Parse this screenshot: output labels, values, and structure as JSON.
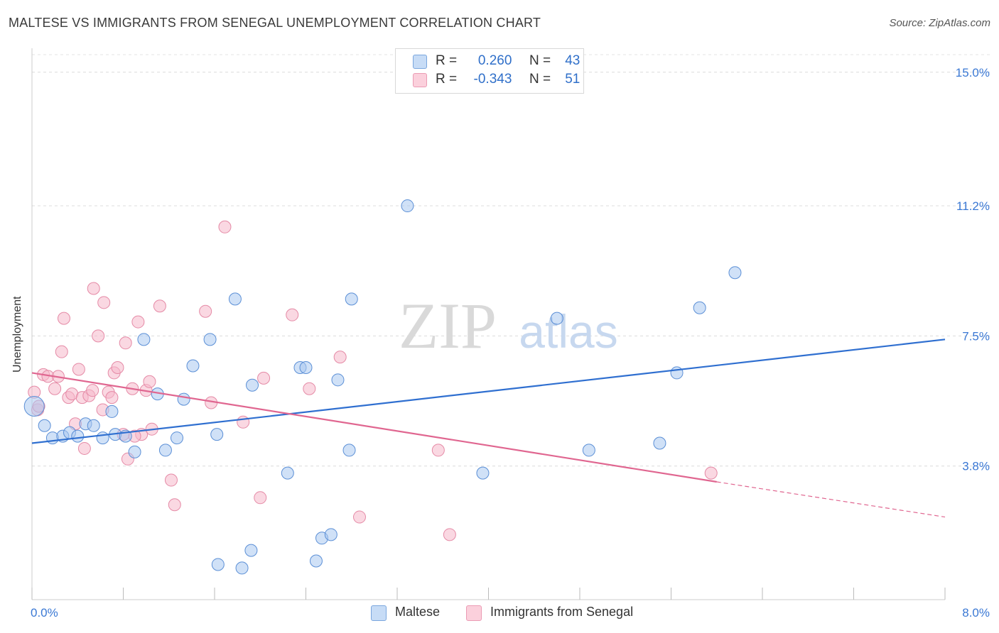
{
  "title": "MALTESE VS IMMIGRANTS FROM SENEGAL UNEMPLOYMENT CORRELATION CHART",
  "source": "Source: ZipAtlas.com",
  "watermark": {
    "part1": "ZIP",
    "part2": "atlas"
  },
  "legend": {
    "rows": [
      {
        "r_label": "R =",
        "r_value": "0.260",
        "n_label": "N =",
        "n_value": "43",
        "color": "#a9c8f0"
      },
      {
        "r_label": "R =",
        "r_value": "-0.343",
        "n_label": "N =",
        "n_value": "51",
        "color": "#f6b8ca"
      }
    ]
  },
  "bottom_legend": {
    "series1": "Maltese",
    "series2": "Immigrants from Senegal"
  },
  "colors": {
    "maltese_fill": "#a9c8f0",
    "maltese_stroke": "#5b8fd6",
    "maltese_line": "#2f6fd0",
    "senegal_fill": "#f6b8ca",
    "senegal_stroke": "#e58aa6",
    "senegal_line": "#e06690",
    "axis_text": "#3a78d4"
  },
  "chart_data": {
    "type": "scatter",
    "title": "MALTESE VS IMMIGRANTS FROM SENEGAL UNEMPLOYMENT CORRELATION CHART",
    "xlabel": "",
    "ylabel": "Unemployment",
    "xlim": [
      0,
      8
    ],
    "ylim": [
      0,
      15.5
    ],
    "x_tick_labels": [
      "0.0%",
      "8.0%"
    ],
    "y_ticks": [
      3.8,
      7.5,
      11.2,
      15.0
    ],
    "y_tick_labels": [
      "3.8%",
      "7.5%",
      "11.2%",
      "15.0%"
    ],
    "grid": "horizontal dashed",
    "legend_position": "top-center",
    "series": [
      {
        "name": "Maltese",
        "trend": {
          "x0": 0,
          "y0": 4.45,
          "x1": 8,
          "y1": 7.4
        },
        "points": [
          [
            0.02,
            5.5
          ],
          [
            0.11,
            4.95
          ],
          [
            0.18,
            4.6
          ],
          [
            0.27,
            4.65
          ],
          [
            0.33,
            4.75
          ],
          [
            0.4,
            4.65
          ],
          [
            0.47,
            5.0
          ],
          [
            0.54,
            4.95
          ],
          [
            0.62,
            4.6
          ],
          [
            0.7,
            5.35
          ],
          [
            0.73,
            4.7
          ],
          [
            0.82,
            4.65
          ],
          [
            0.9,
            4.2
          ],
          [
            0.98,
            7.4
          ],
          [
            1.1,
            5.85
          ],
          [
            1.17,
            4.25
          ],
          [
            1.27,
            4.6
          ],
          [
            1.33,
            5.7
          ],
          [
            1.41,
            6.65
          ],
          [
            1.56,
            7.4
          ],
          [
            1.62,
            4.7
          ],
          [
            1.63,
            1.0
          ],
          [
            1.78,
            8.55
          ],
          [
            1.84,
            0.9
          ],
          [
            1.92,
            1.4
          ],
          [
            1.93,
            6.1
          ],
          [
            2.24,
            3.6
          ],
          [
            2.35,
            6.6
          ],
          [
            2.4,
            6.6
          ],
          [
            2.49,
            1.1
          ],
          [
            2.54,
            1.75
          ],
          [
            2.62,
            1.85
          ],
          [
            2.68,
            6.25
          ],
          [
            2.78,
            4.25
          ],
          [
            2.8,
            8.55
          ],
          [
            3.29,
            11.2
          ],
          [
            3.95,
            3.6
          ],
          [
            4.6,
            8.0
          ],
          [
            4.88,
            4.25
          ],
          [
            5.5,
            4.45
          ],
          [
            5.65,
            6.45
          ],
          [
            5.85,
            8.3
          ],
          [
            6.16,
            9.3
          ]
        ]
      },
      {
        "name": "Immigrants from Senegal",
        "trend": {
          "x0": 0,
          "y0": 6.45,
          "x1": 6.0,
          "y1": 3.35,
          "dash_to": {
            "x": 8,
            "y": 2.35
          }
        },
        "points": [
          [
            0.02,
            5.9
          ],
          [
            0.05,
            5.4
          ],
          [
            0.1,
            6.4
          ],
          [
            0.14,
            6.35
          ],
          [
            0.2,
            6.0
          ],
          [
            0.23,
            6.35
          ],
          [
            0.26,
            7.05
          ],
          [
            0.28,
            8.0
          ],
          [
            0.32,
            5.75
          ],
          [
            0.35,
            5.85
          ],
          [
            0.38,
            5.0
          ],
          [
            0.41,
            6.55
          ],
          [
            0.44,
            5.75
          ],
          [
            0.46,
            4.3
          ],
          [
            0.5,
            5.8
          ],
          [
            0.53,
            5.95
          ],
          [
            0.54,
            8.85
          ],
          [
            0.58,
            7.5
          ],
          [
            0.62,
            5.4
          ],
          [
            0.63,
            8.45
          ],
          [
            0.67,
            5.9
          ],
          [
            0.7,
            5.75
          ],
          [
            0.72,
            6.45
          ],
          [
            0.75,
            6.6
          ],
          [
            0.8,
            4.7
          ],
          [
            0.82,
            7.3
          ],
          [
            0.84,
            4.0
          ],
          [
            0.88,
            6.0
          ],
          [
            0.93,
            7.9
          ],
          [
            0.96,
            4.7
          ],
          [
            1.0,
            5.95
          ],
          [
            1.03,
            6.2
          ],
          [
            1.05,
            4.85
          ],
          [
            1.12,
            8.35
          ],
          [
            1.22,
            3.4
          ],
          [
            1.25,
            2.7
          ],
          [
            1.52,
            8.2
          ],
          [
            1.57,
            5.6
          ],
          [
            1.69,
            10.6
          ],
          [
            1.85,
            5.05
          ],
          [
            2.0,
            2.9
          ],
          [
            2.03,
            6.3
          ],
          [
            2.28,
            8.1
          ],
          [
            2.43,
            6.0
          ],
          [
            2.7,
            6.9
          ],
          [
            2.87,
            2.35
          ],
          [
            3.56,
            4.25
          ],
          [
            3.66,
            1.85
          ],
          [
            5.95,
            3.6
          ],
          [
            0.06,
            5.5
          ],
          [
            0.9,
            4.65
          ]
        ]
      }
    ]
  }
}
